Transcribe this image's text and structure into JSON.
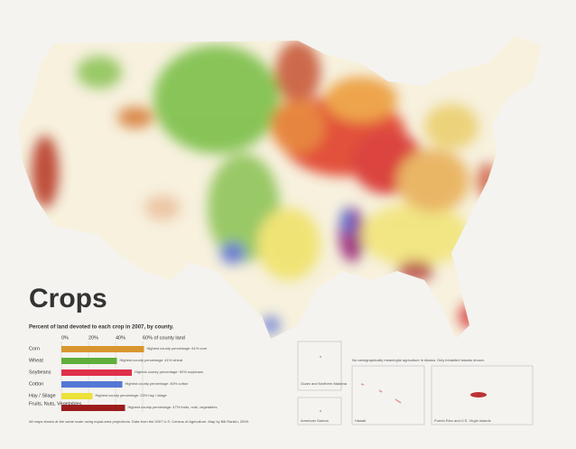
{
  "title": "Crops",
  "subtitle": "Percent of land devoted to each crop in 2007, by county.",
  "legend": {
    "xlim": [
      0,
      60
    ],
    "ticks": [
      {
        "value": 0,
        "label": "0%"
      },
      {
        "value": 20,
        "label": "20%"
      },
      {
        "value": 40,
        "label": "40%"
      },
      {
        "value": 60,
        "label": "60% of county land"
      }
    ],
    "items": [
      {
        "name": "Corn",
        "color": "#d9962e",
        "value": 61,
        "note": "Highest county percentage: 61% corn"
      },
      {
        "name": "Wheat",
        "color": "#5fae3c",
        "value": 41,
        "note": "Highest county percentage: 41% wheat"
      },
      {
        "name": "Soybeans",
        "color": "#e0304a",
        "value": 52,
        "note": "Highest county percentage: 52% soybeans"
      },
      {
        "name": "Cotton",
        "color": "#5477d6",
        "value": 45,
        "note": "Highest county percentage: 45% cotton"
      },
      {
        "name": "Hay / Silage",
        "color": "#ece23a",
        "value": 23,
        "note": "Highest county percentage: 23% hay / silage"
      },
      {
        "name": "Fruits, Nuts, Vegetables",
        "color": "#9c1c1c",
        "value": 47,
        "note": "Highest county percentage: 47% fruits, nuts, vegetables"
      }
    ]
  },
  "footer": "All maps shown at the same scale using equal-area projections. Data from the 2007 U.S. Census of Agriculture. Map by Bill Rankin, 2009.",
  "alaska_note": "No cartographically meaningful agriculture in Alaska. Only inhabited islands shown.",
  "insets": [
    "Guam and Northern Mariana",
    "American Samoa",
    "Hawaii",
    "Puerto Rico and U.S. Virgin Islands"
  ]
}
